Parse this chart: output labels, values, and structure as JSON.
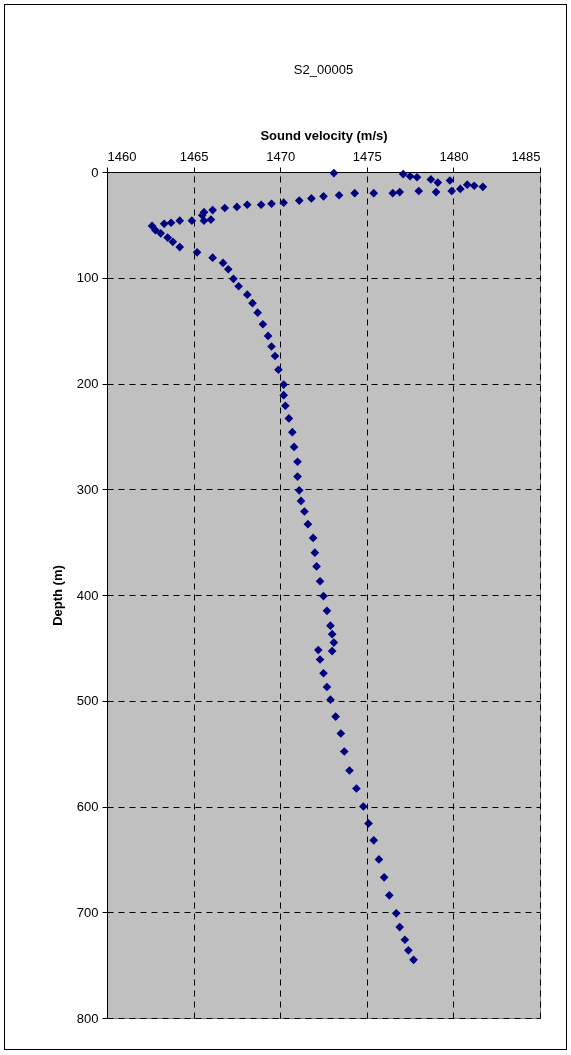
{
  "chart_data": {
    "type": "scatter",
    "title": "S2_00005",
    "xlabel": "Sound velocity (m/s)",
    "ylabel": "Depth (m)",
    "xlim": [
      1460,
      1485
    ],
    "xticks": [
      1460,
      1465,
      1470,
      1475,
      1480,
      1485
    ],
    "ylim": [
      800,
      0
    ],
    "yticks": [
      0,
      100,
      200,
      300,
      400,
      500,
      600,
      700,
      800
    ],
    "grid": true,
    "marker": "diamond",
    "series": [
      {
        "color": "#000080",
        "x": [
          1473.1,
          1477.1,
          1477.5,
          1477.9,
          1478.7,
          1479.1,
          1479.8,
          1480.8,
          1481.2,
          1481.7,
          1480.4,
          1479.9,
          1479.0,
          1478.0,
          1476.9,
          1476.5,
          1475.4,
          1474.3,
          1473.4,
          1472.5,
          1471.8,
          1471.1,
          1470.2,
          1469.5,
          1468.9,
          1468.1,
          1467.5,
          1466.8,
          1466.1,
          1465.6,
          1465.5,
          1466.0,
          1465.6,
          1464.9,
          1464.2,
          1463.7,
          1463.3,
          1462.6,
          1462.8,
          1463.1,
          1463.5,
          1463.8,
          1464.2,
          1465.2,
          1466.1,
          1466.7,
          1467.0,
          1467.3,
          1467.6,
          1468.1,
          1468.4,
          1468.7,
          1469.0,
          1469.3,
          1469.5,
          1469.7,
          1469.9,
          1470.2,
          1470.2,
          1470.3,
          1470.5,
          1470.7,
          1470.8,
          1471.0,
          1471.0,
          1471.1,
          1471.2,
          1471.4,
          1471.6,
          1471.9,
          1472.0,
          1472.1,
          1472.3,
          1472.5,
          1472.7,
          1472.9,
          1473.0,
          1473.1,
          1473.0,
          1472.2,
          1472.3,
          1472.5,
          1472.7,
          1472.9,
          1473.2,
          1473.5,
          1473.7,
          1474.0,
          1474.4,
          1474.8,
          1475.1,
          1475.4,
          1475.7,
          1476.0,
          1476.3,
          1476.7,
          1476.9,
          1477.2,
          1477.4,
          1477.7
        ],
        "values": [
          1,
          2,
          4,
          5,
          7,
          10,
          8,
          12,
          13,
          14,
          16,
          18,
          19,
          18,
          19,
          20,
          20,
          20,
          22,
          23,
          25,
          27,
          29,
          30,
          31,
          31,
          33,
          34,
          36,
          38,
          41,
          45,
          46,
          46,
          46,
          48,
          49,
          51,
          55,
          58,
          62,
          66,
          71,
          76,
          81,
          86,
          92,
          101,
          108,
          116,
          124,
          133,
          144,
          155,
          165,
          174,
          187,
          201,
          211,
          221,
          233,
          246,
          260,
          274,
          288,
          301,
          311,
          321,
          333,
          346,
          360,
          373,
          387,
          401,
          415,
          429,
          437,
          445,
          453,
          452,
          461,
          474,
          487,
          499,
          515,
          531,
          548,
          566,
          583,
          600,
          616,
          632,
          650,
          667,
          684,
          701,
          714,
          726,
          736,
          745
        ]
      }
    ]
  }
}
